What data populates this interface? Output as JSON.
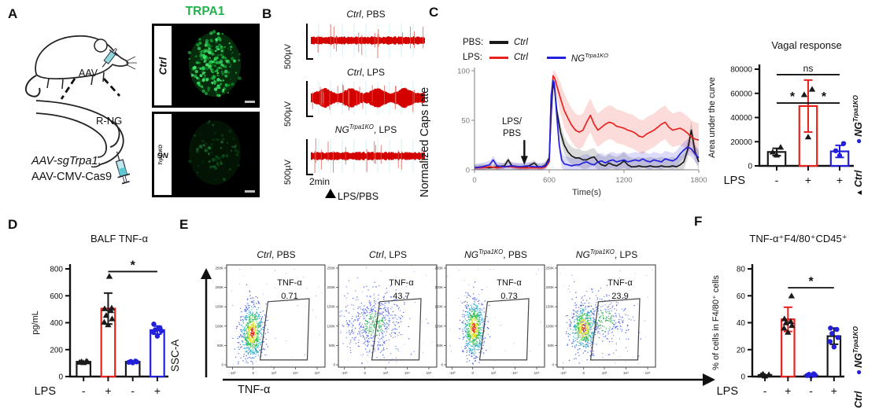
{
  "colors": {
    "red": "#e8231e",
    "blue": "#2320dd",
    "black": "#1a1a1a",
    "green": "#22b14c",
    "trace_red": "#d40000"
  },
  "panels": {
    "A": {
      "letter": "A",
      "aav": "AAV",
      "rng": "R-NG",
      "construct_italic": "AAV-sgTrpa1,",
      "construct_plain": "AAV-CMV-Cas9",
      "stain_title": "TRPA1",
      "images": [
        {
          "label_base": "Ctrl",
          "label_sup": ""
        },
        {
          "label_base": "NG",
          "label_sup": "Trpa1KO"
        }
      ]
    },
    "B": {
      "letter": "B",
      "scale_label": "500µV",
      "time_label": "2min",
      "stim_label": "LPS/PBS",
      "traces": [
        {
          "t_base": "Ctrl",
          "t_sup": "",
          "t_suffix": ", PBS",
          "activity": "low"
        },
        {
          "t_base": "Ctrl",
          "t_sup": "",
          "t_suffix": ", LPS",
          "activity": "high"
        },
        {
          "t_base": "NG",
          "t_sup": "Trpa1KO",
          "t_suffix": ", LPS",
          "activity": "low"
        }
      ]
    },
    "C": {
      "letter": "C",
      "legend": {
        "row1_key": "PBS:",
        "row1_label": "Ctrl",
        "row2_key": "LPS:",
        "row2_label1": "Ctrl",
        "row2_label2_base": "NG",
        "row2_label2_sup": "Trpa1KO"
      },
      "side_legend": {
        "ko_base": "NG",
        "ko_sup": "Trpa1KO",
        "ctrl": "Ctrl"
      }
    },
    "D": {
      "letter": "D"
    },
    "E": {
      "letter": "E",
      "xlabel": "TNF-α",
      "ylabel": "SSC-A",
      "yticks": [
        "250K",
        "200K",
        "150K",
        "100K",
        "50K",
        "0"
      ],
      "xticks": [
        "-10³",
        "0",
        "10³",
        "10⁴",
        "10⁵"
      ],
      "plots": [
        {
          "t_base": "Ctrl",
          "t_sup": "",
          "t_suffix": ", PBS",
          "gate_label": "TNF-α",
          "gate_value": "0.71"
        },
        {
          "t_base": "Ctrl",
          "t_sup": "",
          "t_suffix": ", LPS",
          "gate_label": "TNF-α",
          "gate_value": "43.7"
        },
        {
          "t_base": "NG",
          "t_sup": "Trpa1KO",
          "t_suffix": ", PBS",
          "gate_label": "TNF-α",
          "gate_value": "0.73"
        },
        {
          "t_base": "NG",
          "t_sup": "Trpa1KO",
          "t_suffix": ", LPS",
          "gate_label": "TNF-α",
          "gate_value": "23.9"
        }
      ]
    },
    "F": {
      "letter": "F",
      "side_legend": {
        "ko_base": "NG",
        "ko_sup": "Trpa1KO",
        "ctrl": "Ctrl"
      }
    }
  },
  "chart_data": [
    {
      "id": "caps_rate",
      "type": "line",
      "title": "",
      "xlabel": "Time(s)",
      "ylabel": "Normalized Caps rate",
      "xlim": [
        0,
        1800
      ],
      "ylim": [
        0,
        100
      ],
      "xticks": [
        0,
        600,
        1200,
        1800
      ],
      "yticks": [
        0,
        50,
        100
      ],
      "annotation": {
        "line1": "LPS/",
        "line2": "PBS",
        "arrow_x": 400
      },
      "series": [
        {
          "name": "PBS Ctrl",
          "color": "#1a1a1a",
          "band_pre": 3,
          "band_post": 9,
          "points": [
            [
              0,
              2
            ],
            [
              60,
              3
            ],
            [
              120,
              2
            ],
            [
              180,
              3
            ],
            [
              240,
              4
            ],
            [
              270,
              10
            ],
            [
              300,
              4
            ],
            [
              360,
              3
            ],
            [
              420,
              3
            ],
            [
              480,
              7
            ],
            [
              510,
              3
            ],
            [
              540,
              3
            ],
            [
              570,
              5
            ],
            [
              600,
              12
            ],
            [
              615,
              55
            ],
            [
              630,
              88
            ],
            [
              645,
              80
            ],
            [
              660,
              60
            ],
            [
              690,
              38
            ],
            [
              720,
              25
            ],
            [
              750,
              18
            ],
            [
              780,
              14
            ],
            [
              810,
              12
            ],
            [
              840,
              12
            ],
            [
              870,
              10
            ],
            [
              900,
              10
            ],
            [
              930,
              12
            ],
            [
              960,
              13
            ],
            [
              990,
              8
            ],
            [
              1020,
              5
            ],
            [
              1050,
              4
            ],
            [
              1080,
              7
            ],
            [
              1110,
              5
            ],
            [
              1140,
              4
            ],
            [
              1170,
              6
            ],
            [
              1200,
              9
            ],
            [
              1230,
              5
            ],
            [
              1260,
              3
            ],
            [
              1290,
              3
            ],
            [
              1320,
              4
            ],
            [
              1350,
              3
            ],
            [
              1380,
              3
            ],
            [
              1410,
              4
            ],
            [
              1440,
              3
            ],
            [
              1470,
              3
            ],
            [
              1500,
              4
            ],
            [
              1530,
              3
            ],
            [
              1560,
              3
            ],
            [
              1590,
              4
            ],
            [
              1620,
              3
            ],
            [
              1650,
              5
            ],
            [
              1680,
              8
            ],
            [
              1710,
              20
            ],
            [
              1740,
              40
            ],
            [
              1770,
              18
            ],
            [
              1800,
              8
            ]
          ]
        },
        {
          "name": "LPS Ctrl",
          "color": "#e8231e",
          "band_pre": 2,
          "band_post": 17,
          "points": [
            [
              0,
              2
            ],
            [
              60,
              2
            ],
            [
              120,
              3
            ],
            [
              180,
              2
            ],
            [
              240,
              3
            ],
            [
              300,
              3
            ],
            [
              360,
              2
            ],
            [
              420,
              2
            ],
            [
              480,
              2
            ],
            [
              540,
              2
            ],
            [
              570,
              3
            ],
            [
              600,
              8
            ],
            [
              615,
              70
            ],
            [
              630,
              95
            ],
            [
              645,
              92
            ],
            [
              660,
              85
            ],
            [
              690,
              72
            ],
            [
              720,
              60
            ],
            [
              750,
              52
            ],
            [
              780,
              45
            ],
            [
              810,
              40
            ],
            [
              840,
              38
            ],
            [
              870,
              40
            ],
            [
              900,
              48
            ],
            [
              930,
              55
            ],
            [
              960,
              46
            ],
            [
              990,
              40
            ],
            [
              1020,
              43
            ],
            [
              1050,
              46
            ],
            [
              1080,
              48
            ],
            [
              1110,
              47
            ],
            [
              1140,
              44
            ],
            [
              1170,
              43
            ],
            [
              1200,
              42
            ],
            [
              1230,
              40
            ],
            [
              1260,
              39
            ],
            [
              1290,
              37
            ],
            [
              1320,
              34
            ],
            [
              1350,
              33
            ],
            [
              1380,
              36
            ],
            [
              1410,
              38
            ],
            [
              1440,
              40
            ],
            [
              1470,
              43
            ],
            [
              1500,
              46
            ],
            [
              1530,
              48
            ],
            [
              1560,
              43
            ],
            [
              1590,
              40
            ],
            [
              1620,
              41
            ],
            [
              1650,
              42
            ],
            [
              1680,
              40
            ],
            [
              1710,
              37
            ],
            [
              1740,
              33
            ],
            [
              1770,
              31
            ],
            [
              1800,
              30
            ]
          ]
        },
        {
          "name": "LPS NGTrpa1KO",
          "color": "#2320dd",
          "band_pre": 4,
          "band_post": 8,
          "points": [
            [
              0,
              2
            ],
            [
              60,
              3
            ],
            [
              120,
              5
            ],
            [
              150,
              10
            ],
            [
              180,
              4
            ],
            [
              240,
              3
            ],
            [
              300,
              4
            ],
            [
              360,
              3
            ],
            [
              420,
              4
            ],
            [
              480,
              3
            ],
            [
              540,
              3
            ],
            [
              570,
              4
            ],
            [
              600,
              10
            ],
            [
              615,
              75
            ],
            [
              630,
              90
            ],
            [
              640,
              88
            ],
            [
              660,
              55
            ],
            [
              680,
              25
            ],
            [
              700,
              10
            ],
            [
              720,
              6
            ],
            [
              750,
              5
            ],
            [
              780,
              4
            ],
            [
              810,
              5
            ],
            [
              840,
              5
            ],
            [
              870,
              7
            ],
            [
              900,
              8
            ],
            [
              930,
              6
            ],
            [
              960,
              5
            ],
            [
              990,
              8
            ],
            [
              1020,
              9
            ],
            [
              1050,
              7
            ],
            [
              1080,
              9
            ],
            [
              1110,
              10
            ],
            [
              1140,
              8
            ],
            [
              1170,
              9
            ],
            [
              1200,
              10
            ],
            [
              1230,
              8
            ],
            [
              1260,
              9
            ],
            [
              1290,
              10
            ],
            [
              1320,
              9
            ],
            [
              1350,
              11
            ],
            [
              1380,
              9
            ],
            [
              1410,
              8
            ],
            [
              1440,
              10
            ],
            [
              1470,
              9
            ],
            [
              1500,
              8
            ],
            [
              1530,
              11
            ],
            [
              1560,
              10
            ],
            [
              1590,
              9
            ],
            [
              1620,
              11
            ],
            [
              1650,
              16
            ],
            [
              1680,
              20
            ],
            [
              1710,
              23
            ],
            [
              1740,
              21
            ],
            [
              1770,
              16
            ],
            [
              1800,
              12
            ]
          ]
        }
      ]
    },
    {
      "id": "vagal_auc",
      "type": "bar",
      "title": "Vagal response",
      "ylabel": "Area under the curve",
      "ylim": [
        0,
        80000
      ],
      "yticks": [
        0,
        20000,
        40000,
        60000,
        80000
      ],
      "group_label": "LPS",
      "categories": [
        "-",
        "+",
        "+"
      ],
      "bars": [
        {
          "value": 11500,
          "err": 3000,
          "color": "#1a1a1a",
          "errColor": "#1a1a1a",
          "marker": "triangle",
          "markerColor": "#1a1a1a",
          "points": [
            9000,
            11500,
            15500
          ]
        },
        {
          "value": 49500,
          "err": 21500,
          "color": "#e8231e",
          "errColor": "#e8231e",
          "marker": "triangle",
          "markerColor": "#1a1a1a",
          "points": [
            24000,
            59000,
            63500
          ]
        },
        {
          "value": 12000,
          "err": 5000,
          "color": "#2320dd",
          "errColor": "#2320dd",
          "marker": "circle",
          "markerColor": "#2320dd",
          "points": [
            8500,
            12500,
            18500
          ]
        }
      ],
      "sig": [
        {
          "label": "*",
          "from": 0,
          "to": 1,
          "y": 52000
        },
        {
          "label": "ns",
          "from": 0,
          "to": 2,
          "y": 75500
        },
        {
          "label": "*",
          "from": 1,
          "to": 2,
          "y": 52000
        }
      ]
    },
    {
      "id": "balf_tnf",
      "type": "bar",
      "title": "BALF TNF-α",
      "ylabel": "pg/mL",
      "ylim": [
        0,
        800
      ],
      "yticks": [
        0,
        200,
        400,
        600,
        800
      ],
      "group_label": "LPS",
      "categories": [
        "-",
        "+",
        "-",
        "+"
      ],
      "bars": [
        {
          "value": 110,
          "err": 0,
          "color": "#1a1a1a",
          "errColor": "#1a1a1a",
          "marker": "triangle",
          "markerColor": "#1a1a1a",
          "points": [
            104,
            107,
            110,
            112,
            115
          ]
        },
        {
          "value": 505,
          "err": 115,
          "color": "#e8231e",
          "errColor": "#1a1a1a",
          "marker": "triangle",
          "markerColor": "#1a1a1a",
          "points": [
            385,
            405,
            430,
            455,
            490,
            505,
            510,
            745
          ]
        },
        {
          "value": 110,
          "err": 0,
          "color": "#1a1a1a",
          "errColor": "#2320dd",
          "marker": "circle",
          "markerColor": "#2320dd",
          "points": [
            102,
            106,
            109,
            112,
            115
          ]
        },
        {
          "value": 345,
          "err": 30,
          "color": "#2320dd",
          "errColor": "#2320dd",
          "marker": "circle",
          "markerColor": "#2320dd",
          "points": [
            300,
            328,
            338,
            348,
            360,
            390
          ]
        }
      ],
      "sig": [
        {
          "label": "*",
          "from": 1,
          "to": 3,
          "y": 780
        }
      ]
    },
    {
      "id": "tnf_cells",
      "type": "bar",
      "title": "TNF-α⁺F4/80⁺CD45⁺",
      "ylabel": "% of cells in F4/80⁺ cells",
      "ylim": [
        0,
        80
      ],
      "yticks": [
        0,
        20,
        40,
        60,
        80
      ],
      "group_label": "LPS",
      "categories": [
        "-",
        "+",
        "-",
        "+"
      ],
      "bars": [
        {
          "value": 1.2,
          "err": 0,
          "color": "#1a1a1a",
          "errColor": "#1a1a1a",
          "marker": "triangle",
          "markerColor": "#1a1a1a",
          "points": [
            0.5,
            1,
            1.5,
            2
          ]
        },
        {
          "value": 42.5,
          "err": 9,
          "color": "#e8231e",
          "errColor": "#e8231e",
          "marker": "triangle",
          "markerColor": "#1a1a1a",
          "points": [
            33,
            36,
            38,
            40,
            41,
            43,
            60
          ]
        },
        {
          "value": 0.8,
          "err": 0,
          "color": "#1a1a1a",
          "errColor": "#2320dd",
          "marker": "circle",
          "markerColor": "#2320dd",
          "points": [
            0.4,
            0.8,
            1.2,
            1.6,
            2
          ]
        },
        {
          "value": 30,
          "err": 6,
          "color": "#1a1a1a",
          "errColor": "#1a1a1a",
          "marker": "circle",
          "markerColor": "#2320dd",
          "points": [
            22,
            26,
            29,
            32,
            35,
            36
          ]
        }
      ],
      "sig": [
        {
          "label": "*",
          "from": 1,
          "to": 3,
          "y": 66
        }
      ]
    }
  ]
}
